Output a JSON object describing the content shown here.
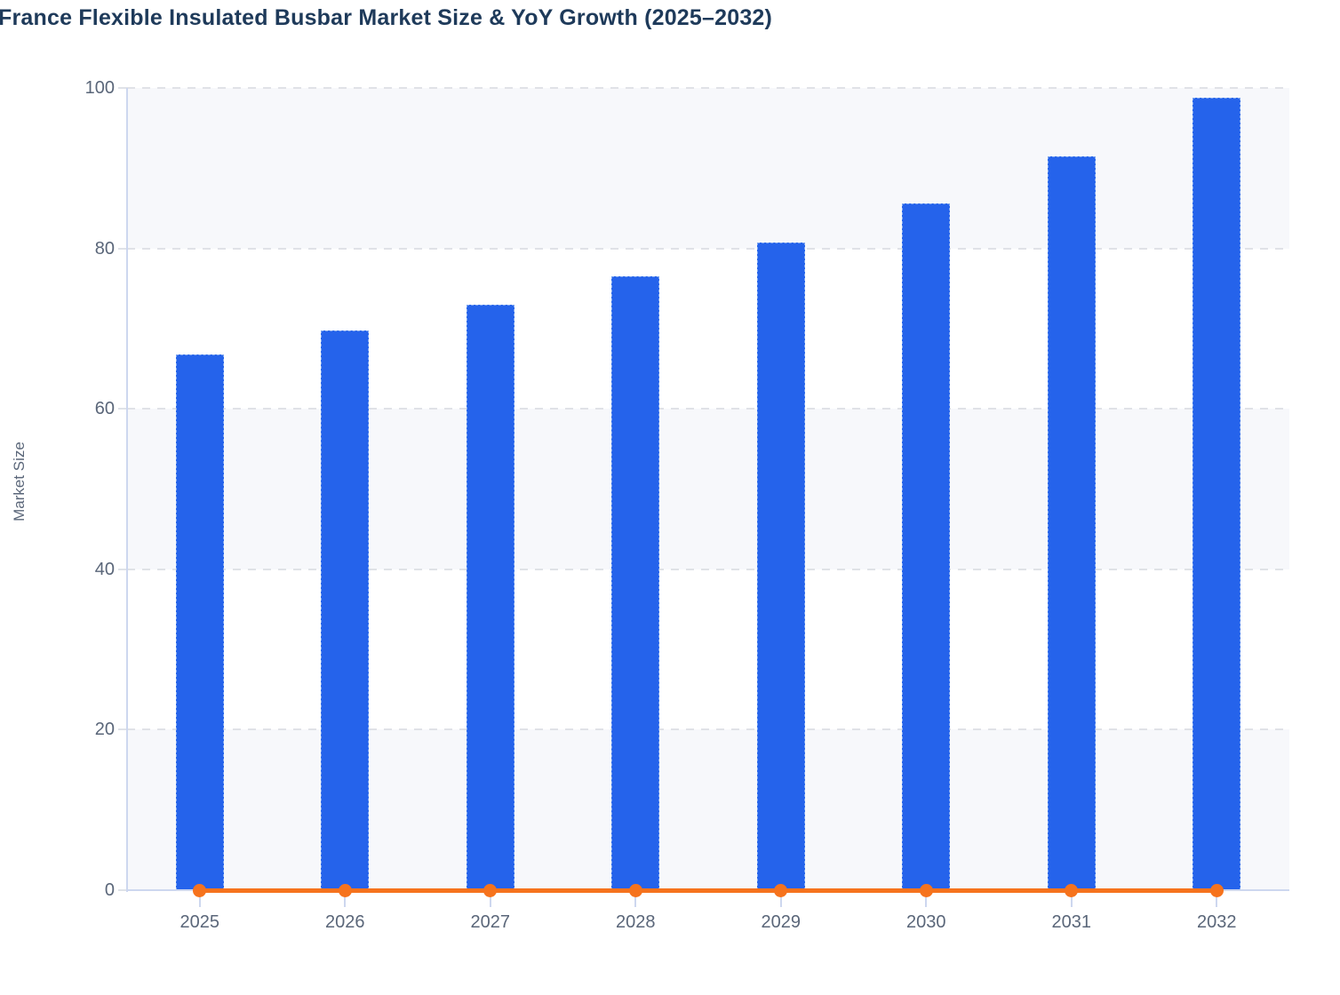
{
  "title": "France Flexible Insulated Busbar Market Size & YoY Growth (2025–2032)",
  "ylabel": "Market Size",
  "colors": {
    "title_text": "#1e3a5a",
    "axis_text": "#5a6679",
    "bar_fill": "#2563eb",
    "bar_border": "#7ea6f0",
    "line": "#f6731d",
    "axis_line": "#cdd7ef",
    "tick": "#dfe2e8",
    "gridline": "#e0e2e7",
    "band": "#f7f8fb"
  },
  "chart_data": {
    "type": "bar+line",
    "title": "France Flexible Insulated Busbar Market Size & YoY Growth (2025–2032)",
    "xlabel": "",
    "ylabel": "Market Size",
    "categories": [
      "2025",
      "2026",
      "2027",
      "2028",
      "2029",
      "2030",
      "2031",
      "2032"
    ],
    "series": [
      {
        "name": "Market Size",
        "type": "bar",
        "values": [
          66.8,
          69.8,
          73.0,
          76.5,
          80.7,
          85.6,
          91.5,
          98.8
        ]
      },
      {
        "name": "YoY Growth",
        "type": "line",
        "values": [
          0,
          0,
          0,
          0,
          0,
          0,
          0,
          0
        ]
      }
    ],
    "ylim": [
      0,
      100
    ],
    "yticks": [
      0,
      20,
      40,
      60,
      80,
      100
    ],
    "grid": "dashed horizontal",
    "background_bands": "alternating light every 20 units",
    "legend": "none"
  }
}
